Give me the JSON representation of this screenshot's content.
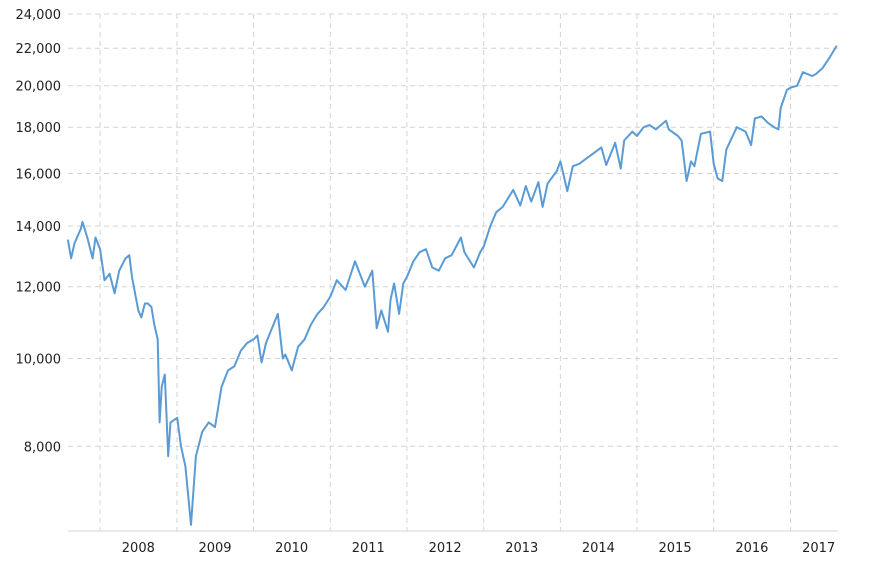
{
  "colors": {
    "line": "#5b9bd5",
    "grid": "#d4d4d4",
    "text": "#222222",
    "background": "#ffffff"
  },
  "chart_data": {
    "type": "line",
    "title": "",
    "xlabel": "",
    "ylabel": "",
    "y_scale": "log",
    "ylim": [
      6450,
      24000
    ],
    "xlim": [
      "2007-08-01",
      "2017-08-15"
    ],
    "grid": true,
    "legend": "none",
    "y_ticks": [
      {
        "value": 8000,
        "label": "8,000"
      },
      {
        "value": 10000,
        "label": "10,000"
      },
      {
        "value": 12000,
        "label": "12,000"
      },
      {
        "value": 14000,
        "label": "14,000"
      },
      {
        "value": 16000,
        "label": "16,000"
      },
      {
        "value": 18000,
        "label": "18,000"
      },
      {
        "value": 20000,
        "label": "20,000"
      },
      {
        "value": 22000,
        "label": "22,000"
      },
      {
        "value": 24000,
        "label": "24,000"
      }
    ],
    "x_gridlines": [
      "2008-01-01",
      "2009-01-01",
      "2010-01-01",
      "2011-01-01",
      "2012-01-01",
      "2013-01-01",
      "2014-01-01",
      "2015-01-01",
      "2016-01-01",
      "2017-01-01"
    ],
    "x_ticks": [
      {
        "date": "2008-07-01",
        "label": "2008"
      },
      {
        "date": "2009-07-01",
        "label": "2009"
      },
      {
        "date": "2010-07-01",
        "label": "2010"
      },
      {
        "date": "2011-07-01",
        "label": "2011"
      },
      {
        "date": "2012-07-01",
        "label": "2012"
      },
      {
        "date": "2013-07-01",
        "label": "2013"
      },
      {
        "date": "2014-07-01",
        "label": "2014"
      },
      {
        "date": "2015-07-01",
        "label": "2015"
      },
      {
        "date": "2016-07-01",
        "label": "2016"
      },
      {
        "date": "2017-05-15",
        "label": "2017"
      }
    ],
    "series": [
      {
        "x": [
          "2007-08-01",
          "2007-08-16",
          "2007-09-01",
          "2007-10-01",
          "2007-10-09",
          "2007-11-01",
          "2007-11-26",
          "2007-12-10",
          "2008-01-01",
          "2008-01-22",
          "2008-02-15",
          "2008-03-10",
          "2008-04-01",
          "2008-05-01",
          "2008-05-19",
          "2008-06-01",
          "2008-07-01",
          "2008-07-15",
          "2008-08-01",
          "2008-08-15",
          "2008-09-01",
          "2008-09-15",
          "2008-10-01",
          "2008-10-10",
          "2008-10-20",
          "2008-11-04",
          "2008-11-20",
          "2008-12-01",
          "2009-01-02",
          "2009-01-20",
          "2009-02-10",
          "2009-03-09",
          "2009-04-01",
          "2009-05-01",
          "2009-06-01",
          "2009-07-01",
          "2009-08-01",
          "2009-09-01",
          "2009-10-01",
          "2009-11-01",
          "2009-12-01",
          "2010-01-01",
          "2010-01-19",
          "2010-02-08",
          "2010-03-01",
          "2010-04-26",
          "2010-05-20",
          "2010-06-01",
          "2010-07-02",
          "2010-08-01",
          "2010-09-01",
          "2010-10-01",
          "2010-11-01",
          "2010-12-01",
          "2011-01-01",
          "2011-02-01",
          "2011-03-15",
          "2011-04-29",
          "2011-06-15",
          "2011-07-20",
          "2011-08-10",
          "2011-09-01",
          "2011-10-03",
          "2011-10-15",
          "2011-11-01",
          "2011-11-25",
          "2011-12-15",
          "2012-01-01",
          "2012-02-01",
          "2012-03-01",
          "2012-04-01",
          "2012-05-01",
          "2012-06-01",
          "2012-07-01",
          "2012-08-01",
          "2012-09-14",
          "2012-10-01",
          "2012-11-15",
          "2012-12-15",
          "2013-01-01",
          "2013-02-01",
          "2013-03-01",
          "2013-04-01",
          "2013-05-21",
          "2013-06-24",
          "2013-07-20",
          "2013-08-15",
          "2013-09-18",
          "2013-10-08",
          "2013-11-01",
          "2013-12-15",
          "2014-01-01",
          "2014-02-03",
          "2014-03-01",
          "2014-04-01",
          "2014-05-01",
          "2014-06-01",
          "2014-07-15",
          "2014-08-07",
          "2014-09-19",
          "2014-10-15",
          "2014-11-01",
          "2014-12-10",
          "2015-01-01",
          "2015-02-01",
          "2015-03-01",
          "2015-04-01",
          "2015-05-19",
          "2015-06-01",
          "2015-07-15",
          "2015-08-01",
          "2015-08-25",
          "2015-09-15",
          "2015-10-01",
          "2015-11-01",
          "2015-12-15",
          "2016-01-01",
          "2016-01-20",
          "2016-02-11",
          "2016-03-01",
          "2016-04-20",
          "2016-06-01",
          "2016-06-27",
          "2016-07-15",
          "2016-08-15",
          "2016-09-15",
          "2016-10-15",
          "2016-11-04",
          "2016-11-15",
          "2016-12-15",
          "2017-01-01",
          "2017-02-01",
          "2017-03-01",
          "2017-04-13",
          "2017-05-01",
          "2017-06-01",
          "2017-07-01",
          "2017-08-07"
        ],
        "y": [
          13500,
          12900,
          13400,
          13900,
          14150,
          13600,
          12900,
          13600,
          13200,
          12200,
          12400,
          11800,
          12500,
          12900,
          13000,
          12300,
          11300,
          11100,
          11500,
          11500,
          11400,
          10900,
          10500,
          8500,
          9300,
          9600,
          7800,
          8500,
          8600,
          8000,
          7600,
          6550,
          7800,
          8300,
          8500,
          8400,
          9300,
          9700,
          9800,
          10200,
          10400,
          10500,
          10600,
          9900,
          10400,
          11200,
          10000,
          10100,
          9700,
          10300,
          10500,
          10900,
          11200,
          11400,
          11700,
          12200,
          11900,
          12800,
          12000,
          12500,
          10800,
          11300,
          10700,
          11600,
          12100,
          11200,
          12100,
          12300,
          12800,
          13100,
          13200,
          12600,
          12500,
          12900,
          13000,
          13600,
          13100,
          12600,
          13100,
          13300,
          14000,
          14500,
          14700,
          15350,
          14750,
          15500,
          14900,
          15650,
          14700,
          15600,
          16100,
          16500,
          15300,
          16300,
          16400,
          16600,
          16800,
          17100,
          16350,
          17300,
          16200,
          17400,
          17800,
          17600,
          18000,
          18100,
          17900,
          18300,
          17900,
          17600,
          17400,
          15700,
          16500,
          16300,
          17700,
          17800,
          16400,
          15800,
          15700,
          17000,
          18000,
          17800,
          17200,
          18400,
          18500,
          18200,
          18000,
          17900,
          18900,
          19800,
          19900,
          20000,
          20700,
          20500,
          20600,
          20900,
          21400,
          22100
        ]
      }
    ]
  }
}
